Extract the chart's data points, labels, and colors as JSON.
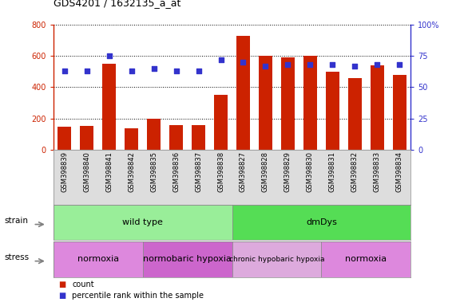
{
  "title": "GDS4201 / 1632135_a_at",
  "samples": [
    "GSM398839",
    "GSM398840",
    "GSM398841",
    "GSM398842",
    "GSM398835",
    "GSM398836",
    "GSM398837",
    "GSM398838",
    "GSM398827",
    "GSM398828",
    "GSM398829",
    "GSM398830",
    "GSM398831",
    "GSM398832",
    "GSM398833",
    "GSM398834"
  ],
  "counts": [
    150,
    155,
    550,
    140,
    200,
    160,
    160,
    350,
    725,
    600,
    590,
    600,
    500,
    460,
    540,
    480
  ],
  "percentile": [
    63,
    63,
    75,
    63,
    65,
    63,
    63,
    72,
    70,
    67,
    68,
    68,
    68,
    67,
    68,
    68
  ],
  "ylim_left": [
    0,
    800
  ],
  "ylim_right": [
    0,
    100
  ],
  "yticks_left": [
    0,
    200,
    400,
    600,
    800
  ],
  "yticks_right": [
    0,
    25,
    50,
    75,
    100
  ],
  "bar_color": "#cc2200",
  "dot_color": "#3333cc",
  "strain_groups": [
    {
      "label": "wild type",
      "start": 0,
      "end": 8,
      "color": "#99ee99"
    },
    {
      "label": "dmDys",
      "start": 8,
      "end": 16,
      "color": "#55dd55"
    }
  ],
  "stress_groups": [
    {
      "label": "normoxia",
      "start": 0,
      "end": 4,
      "color": "#dd88dd"
    },
    {
      "label": "normobaric hypoxia",
      "start": 4,
      "end": 8,
      "color": "#cc66cc"
    },
    {
      "label": "chronic hypobaric hypoxia",
      "start": 8,
      "end": 12,
      "color": "#ddaadd"
    },
    {
      "label": "normoxia",
      "start": 12,
      "end": 16,
      "color": "#dd88dd"
    }
  ],
  "legend_count_label": "count",
  "legend_pct_label": "percentile rank within the sample",
  "left_axis_color": "#cc2200",
  "right_axis_color": "#3333cc"
}
